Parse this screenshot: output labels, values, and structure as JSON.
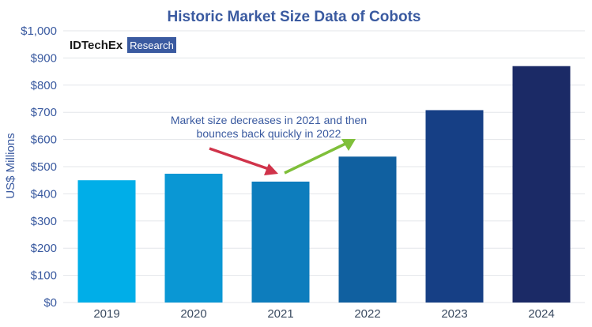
{
  "logo": {
    "brand": "IDTechEx",
    "sub": "Research",
    "box_color": "#3a5aa0"
  },
  "chart_data": {
    "type": "bar",
    "title": "Historic Market Size Data of Cobots",
    "ylabel": "US$ Millions",
    "xlabel": "",
    "categories": [
      "2019",
      "2020",
      "2021",
      "2022",
      "2023",
      "2024"
    ],
    "values": [
      450,
      474,
      445,
      537,
      708,
      870
    ],
    "ylim": [
      0,
      1000
    ],
    "yticks": [
      0,
      100,
      200,
      300,
      400,
      500,
      600,
      700,
      800,
      900,
      1000
    ],
    "ytick_labels": [
      "$0",
      "$100",
      "$200",
      "$300",
      "$400",
      "$500",
      "$600",
      "$700",
      "$800",
      "$900",
      "$1,000"
    ],
    "grid": true,
    "bar_colors": [
      "#00aee8",
      "#0a97d4",
      "#0d7dbd",
      "#1060a0",
      "#163f85",
      "#1b2a66"
    ],
    "annotation": {
      "lines": [
        "Market size decreases in 2021 and then",
        "bounces back quickly in 2022"
      ],
      "down_arrow_color": "#d0334a",
      "up_arrow_color": "#7fbf3a"
    }
  }
}
